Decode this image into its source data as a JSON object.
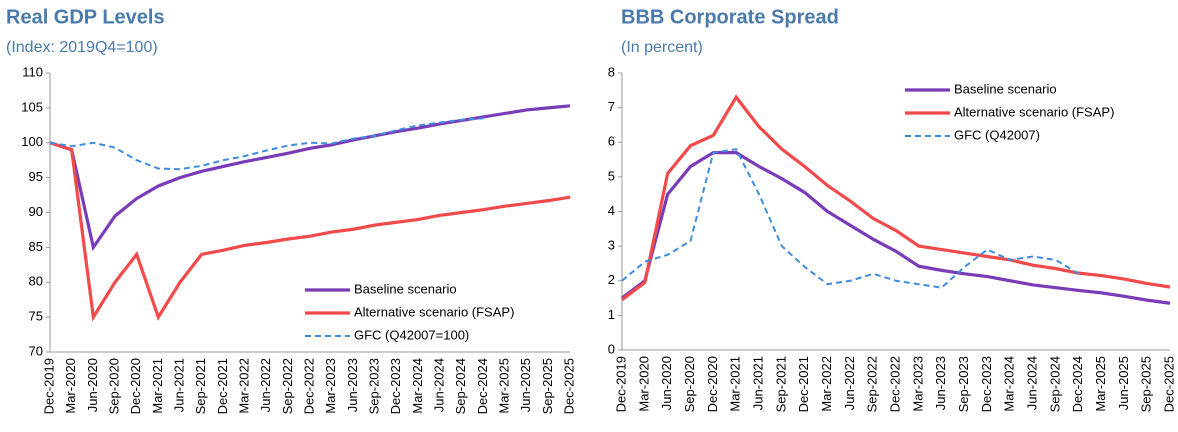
{
  "chart_data": [
    {
      "type": "line",
      "title": "Real GDP Levels",
      "subtitle": "(Index: 2019Q4=100)",
      "categories": [
        "Dec-2019",
        "Mar-2020",
        "Jun-2020",
        "Sep-2020",
        "Dec-2020",
        "Mar-2021",
        "Jun-2021",
        "Sep-2021",
        "Dec-2021",
        "Mar-2022",
        "Jun-2022",
        "Sep-2022",
        "Dec-2022",
        "Mar-2023",
        "Jun-2023",
        "Sep-2023",
        "Dec-2023",
        "Mar-2024",
        "Jun-2024",
        "Sep-2024",
        "Dec-2024",
        "Mar-2025",
        "Jun-2025",
        "Sep-2025",
        "Dec-2025"
      ],
      "series": [
        {
          "name": "Baseline scenario",
          "color": "#7a3bb8",
          "dashed": false,
          "values": [
            100,
            99,
            85,
            89.5,
            92,
            93.8,
            95,
            95.9,
            96.6,
            97.3,
            97.9,
            98.5,
            99.2,
            99.7,
            100.4,
            101,
            101.6,
            102.1,
            102.7,
            103.2,
            103.7,
            104.2,
            104.7,
            105,
            105.3
          ]
        },
        {
          "name": "Alternative scenario (FSAP)",
          "color": "#f24a4a",
          "dashed": false,
          "values": [
            100,
            99,
            75,
            80,
            84,
            75,
            80,
            84,
            84.6,
            85.3,
            85.7,
            86.2,
            86.6,
            87.2,
            87.6,
            88.2,
            88.6,
            89,
            89.6,
            90,
            90.4,
            90.9,
            91.3,
            91.7,
            92.2
          ]
        },
        {
          "name": "GFC (Q42007=100)",
          "color": "#3d8ee0",
          "dashed": true,
          "values": [
            100,
            99.5,
            100,
            99.3,
            97.5,
            96.3,
            96.2,
            96.7,
            97.5,
            98.1,
            98.9,
            99.6,
            100,
            99.9,
            100.6,
            101,
            101.8,
            102.5,
            102.9,
            103.3,
            103.5,
            null,
            null,
            null,
            null
          ]
        }
      ],
      "ylim": [
        70,
        110
      ],
      "yticks": [
        70,
        75,
        80,
        85,
        90,
        95,
        100,
        105,
        110
      ],
      "legend": "lower right"
    },
    {
      "type": "line",
      "title": "BBB Corporate Spread",
      "subtitle": "(In percent)",
      "categories": [
        "Dec-2019",
        "Mar-2020",
        "Jun-2020",
        "Sep-2020",
        "Dec-2020",
        "Mar-2021",
        "Jun-2021",
        "Sep-2021",
        "Dec-2021",
        "Mar-2022",
        "Jun-2022",
        "Sep-2022",
        "Dec-2022",
        "Mar-2023",
        "Jun-2023",
        "Sep-2023",
        "Dec-2023",
        "Mar-2024",
        "Jun-2024",
        "Sep-2024",
        "Dec-2024",
        "Mar-2025",
        "Jun-2025",
        "Sep-2025",
        "Dec-2025"
      ],
      "series": [
        {
          "name": "Baseline scenario",
          "color": "#7a3bb8",
          "dashed": false,
          "values": [
            1.5,
            2,
            4.5,
            5.3,
            5.7,
            5.7,
            5.3,
            4.95,
            4.55,
            4,
            3.6,
            3.2,
            2.85,
            2.42,
            2.3,
            2.2,
            2.12,
            2,
            1.88,
            1.8,
            1.72,
            1.65,
            1.55,
            1.44,
            1.35
          ]
        },
        {
          "name": "Alternative scenario (FSAP)",
          "color": "#f24a4a",
          "dashed": false,
          "values": [
            1.45,
            1.95,
            5.1,
            5.9,
            6.2,
            7.3,
            6.45,
            5.8,
            5.3,
            4.75,
            4.3,
            3.8,
            3.45,
            3,
            2.9,
            2.8,
            2.7,
            2.6,
            2.45,
            2.35,
            2.22,
            2.15,
            2.05,
            1.92,
            1.82
          ]
        },
        {
          "name": "GFC (Q42007)",
          "color": "#3d8ee0",
          "dashed": true,
          "values": [
            2,
            2.55,
            2.75,
            3.15,
            5.7,
            5.8,
            4.5,
            3,
            2.4,
            1.9,
            2,
            2.2,
            2,
            1.9,
            1.8,
            2.4,
            2.9,
            2.6,
            2.7,
            2.6,
            2.2,
            null,
            null,
            null,
            null
          ]
        }
      ],
      "ylim": [
        0,
        8
      ],
      "yticks": [
        0,
        1,
        2,
        3,
        4,
        5,
        6,
        7,
        8
      ],
      "legend": "upper right"
    }
  ]
}
